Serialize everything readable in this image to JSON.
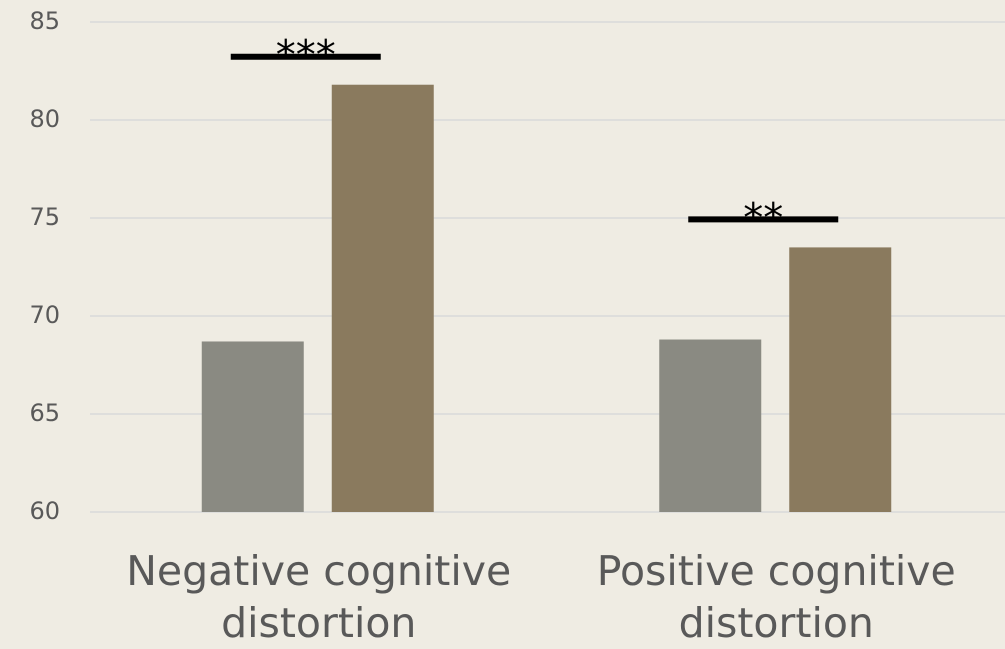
{
  "chart_data": {
    "type": "bar",
    "categories": [
      "Negative cognitive distortion",
      "Positive cognitive distortion"
    ],
    "series": [
      {
        "color": "#8a8a82",
        "values": [
          68.7,
          68.8
        ]
      },
      {
        "color": "#8a7a5e",
        "values": [
          81.8,
          73.5
        ]
      }
    ],
    "annotations": [
      "***",
      "**"
    ],
    "ylim": [
      60,
      85
    ],
    "yticks": [
      60,
      65,
      70,
      75,
      80,
      85
    ],
    "grid": true
  }
}
